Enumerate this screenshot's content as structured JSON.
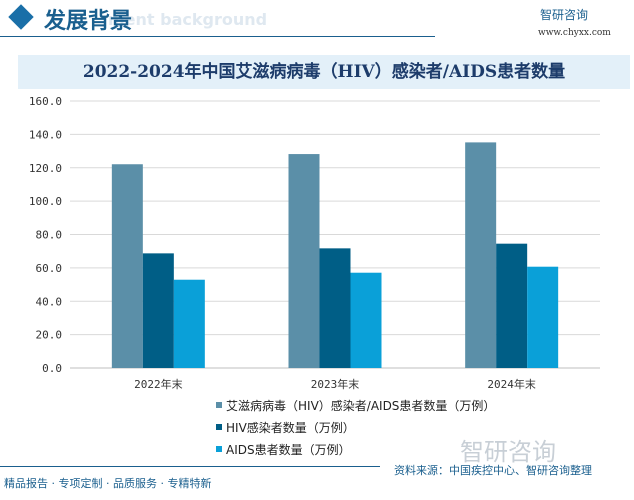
{
  "header": {
    "title": "发展背景",
    "subtitle": "ment background",
    "logo": "智研咨询",
    "url": "www.chyxx.com"
  },
  "footer": {
    "slogan": "精品报告 · 专项定制 · 品质服务 · 专精特新",
    "source": "资料来源：中国疾控中心、智研咨询整理",
    "watermark": "智研咨询"
  },
  "colors": {
    "total": "#5b8fa8",
    "hiv": "#005e86",
    "aids": "#0aa0d8"
  },
  "chart_data": {
    "type": "bar",
    "title": "2022-2024年中国艾滋病病毒（HIV）感染者/AIDS患者数量",
    "categories": [
      "2022年末",
      "2023年末",
      "2024年末"
    ],
    "series": [
      {
        "name": "艾滋病病毒（HIV）感染者/AIDS患者数量（万例）",
        "values": [
          122.1,
          128.2,
          135.2
        ]
      },
      {
        "name": "HIV感染者数量（万例）",
        "values": [
          68.7,
          71.7,
          74.5
        ]
      },
      {
        "name": "AIDS患者数量（万例）",
        "values": [
          52.9,
          57.1,
          60.7
        ]
      }
    ],
    "ylim": [
      0,
      160
    ],
    "yticks": [
      "0.0",
      "20.0",
      "40.0",
      "60.0",
      "80.0",
      "100.0",
      "120.0",
      "140.0",
      "160.0"
    ],
    "grid": true,
    "legend": "bottom-center"
  }
}
